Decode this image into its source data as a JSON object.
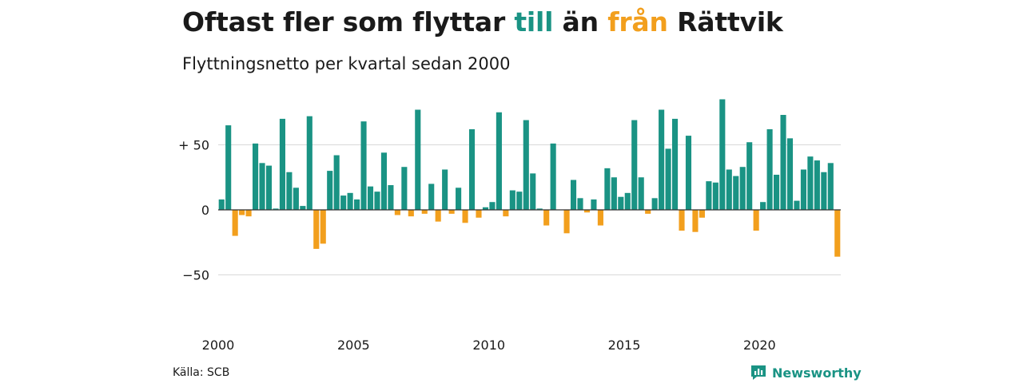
{
  "title": {
    "part1": "Oftast fler som flyttar ",
    "till": "till",
    "part2": " än ",
    "fran": "från",
    "part3": " Rättvik"
  },
  "subtitle": "Flyttningsnetto per kvartal sedan 2000",
  "source": "Källa: SCB",
  "brand": {
    "name": "Newsworthy",
    "icon": "newsworthy-logo-icon"
  },
  "colors": {
    "positive": "#1a9384",
    "negative": "#f29f1d",
    "grid": "#d9d9d9",
    "axis": "#333333",
    "brand": "#1a9384"
  },
  "chart_data": {
    "type": "bar",
    "title": "Oftast fler som flyttar till än från Rättvik",
    "subtitle": "Flyttningsnetto per kvartal sedan 2000",
    "x_start": "2000-Q1",
    "frequency": "quarterly",
    "x_tick_labels": [
      "2000",
      "2005",
      "2010",
      "2015",
      "2020"
    ],
    "y_ticks": [
      {
        "value": 50,
        "label": "+ 50"
      },
      {
        "value": 0,
        "label": "0"
      },
      {
        "value": -50,
        "label": "−50"
      }
    ],
    "ylim": [
      -60,
      90
    ],
    "grid": true,
    "legend": "none",
    "values": [
      8,
      65,
      -20,
      -4,
      -5,
      51,
      36,
      34,
      1,
      70,
      29,
      17,
      3,
      72,
      -30,
      -26,
      30,
      42,
      11,
      13,
      8,
      68,
      18,
      14,
      44,
      19,
      -4,
      33,
      -5,
      77,
      -3,
      20,
      -9,
      31,
      -3,
      17,
      -10,
      62,
      -6,
      2,
      6,
      75,
      -5,
      15,
      14,
      69,
      28,
      1,
      -12,
      51,
      0,
      -18,
      23,
      9,
      -2,
      8,
      -12,
      32,
      25,
      10,
      13,
      69,
      25,
      -3,
      9,
      77,
      47,
      70,
      -16,
      57,
      -17,
      -6,
      22,
      21,
      85,
      31,
      26,
      33,
      52,
      -16,
      6,
      62,
      27,
      73,
      55,
      7,
      31,
      41,
      38,
      29,
      36,
      -36
    ]
  }
}
